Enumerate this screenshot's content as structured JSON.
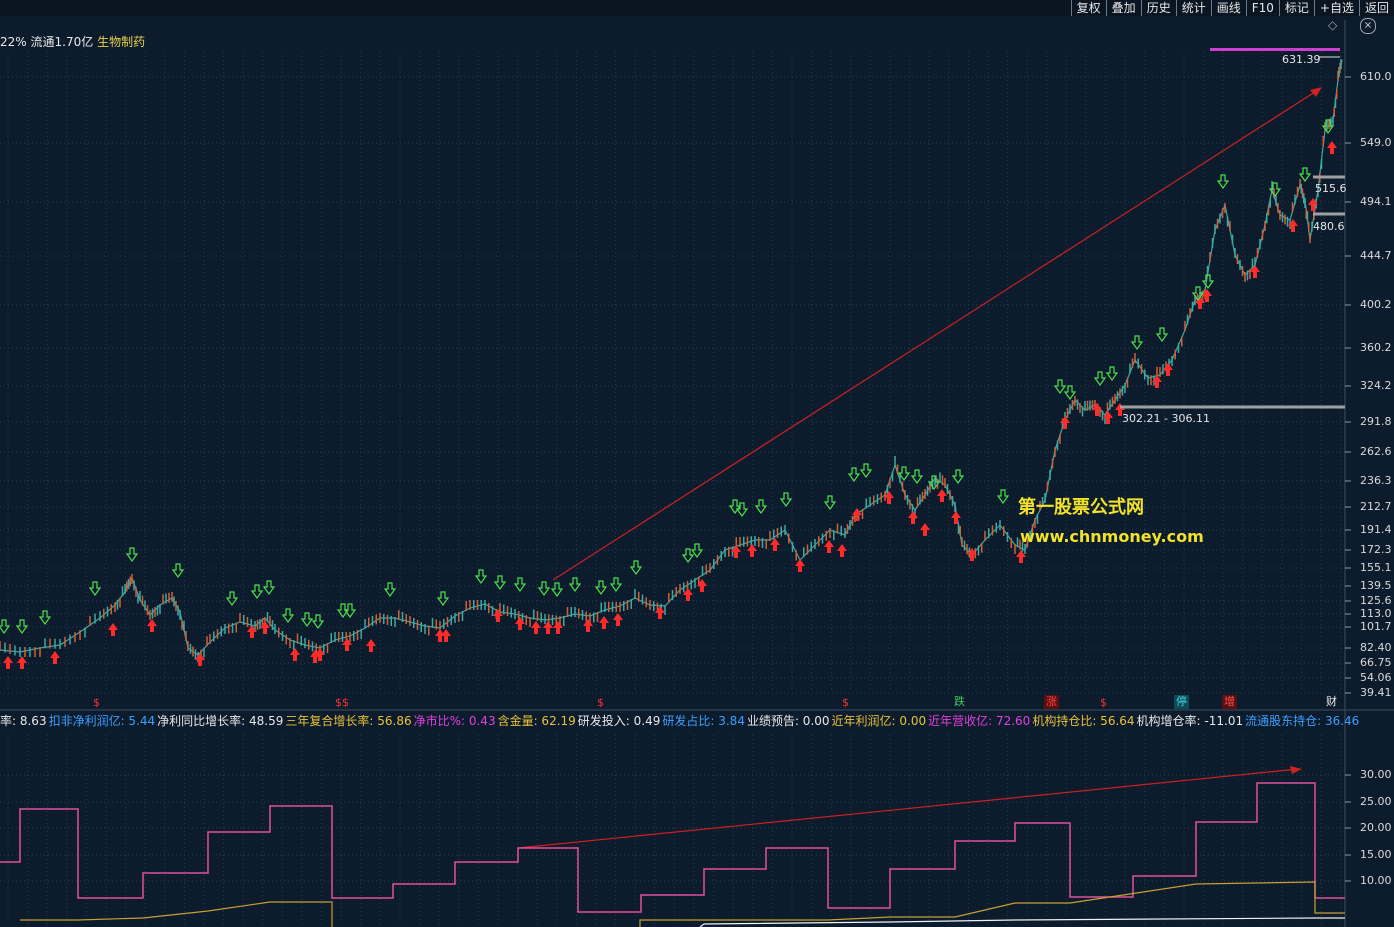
{
  "toolbar": {
    "items": [
      {
        "label": "复权",
        "name": "toolbar-fuquan-button"
      },
      {
        "label": "叠加",
        "name": "toolbar-diejia-button"
      },
      {
        "label": "历史",
        "name": "toolbar-lishi-button"
      },
      {
        "label": "统计",
        "name": "toolbar-tongji-button"
      },
      {
        "label": "画线",
        "name": "toolbar-huaxian-button"
      },
      {
        "label": "F10",
        "name": "toolbar-f10-button"
      },
      {
        "label": "标记",
        "name": "toolbar-biaoji-button"
      },
      {
        "label": "+自选",
        "name": "toolbar-zixuan-button"
      },
      {
        "label": "返回",
        "name": "toolbar-fanhui-button"
      }
    ]
  },
  "info": {
    "prefix": "22%",
    "float_label": "流通1.70亿",
    "industry": "生物制药",
    "diamond": "◇",
    "close": "×"
  },
  "watermark": {
    "line1": "第一股票公式网",
    "line2": "www.chnmoney.com"
  },
  "price_axis": [
    "610.0",
    "549.0",
    "494.1",
    "444.7",
    "400.2",
    "360.2",
    "324.2",
    "291.8",
    "262.6",
    "236.3",
    "212.7",
    "191.4",
    "172.3",
    "155.1",
    "139.5",
    "125.6",
    "113.0",
    "101.7",
    "82.40",
    "66.75",
    "54.06",
    "39.41"
  ],
  "indicator_axis": [
    "30.00",
    "25.00",
    "20.00",
    "15.00",
    "10.00"
  ],
  "annotations": {
    "peak_price": "631.39",
    "level_high": "515.6",
    "level_low": "480.6",
    "range_label": "302.21 - 306.11"
  },
  "event_badges": [
    {
      "text": "跌",
      "color": "#3cd05a"
    },
    {
      "text": "涨",
      "color": "#ff4040"
    },
    {
      "text": "停",
      "color": "#44d2e0"
    },
    {
      "text": "增",
      "color": "#ff5050"
    },
    {
      "text": "财",
      "color": "#e8e8e8"
    }
  ],
  "dollar_markers": [
    "$",
    "$$",
    "$",
    "$",
    "$"
  ],
  "financials": [
    {
      "label": "率:",
      "value": "8.63",
      "color": "#e8e8e8"
    },
    {
      "label": "扣非净利润亿:",
      "value": "5.44",
      "color": "#3aa0ff"
    },
    {
      "label": "净利同比增长率:",
      "value": "48.59",
      "color": "#e8e8e8"
    },
    {
      "label": "三年复合增长率:",
      "value": "56.86",
      "color": "#e8c23a"
    },
    {
      "label": "净市比%:",
      "value": "0.43",
      "color": "#e040e0"
    },
    {
      "label": "含金量:",
      "value": "62.19",
      "color": "#e8c23a"
    },
    {
      "label": "研发投入:",
      "value": "0.49",
      "color": "#e8e8e8"
    },
    {
      "label": "研发占比:",
      "value": "3.84",
      "color": "#3aa0ff"
    },
    {
      "label": "业绩预告:",
      "value": "0.00",
      "color": "#e8e8e8"
    },
    {
      "label": "近年利润亿:",
      "value": "0.00",
      "color": "#e8c23a"
    },
    {
      "label": "近年营收亿:",
      "value": "72.60",
      "color": "#e040e0"
    },
    {
      "label": "机构持仓比:",
      "value": "56.64",
      "color": "#e8c23a"
    },
    {
      "label": "机构增仓率:",
      "value": "-11.01",
      "color": "#e8e8e8"
    },
    {
      "label": "流通股东持仓:",
      "value": "36.46",
      "color": "#3aa0ff"
    }
  ],
  "colors": {
    "background": "#0d1c2c",
    "grid": "#1f3e5a",
    "candle_up": "#d0603a",
    "candle_down": "#3fa8a0",
    "trend_arrow": "#d02020",
    "buy_arrow": "#ff2a2a",
    "sell_arrow": "#4ce04c",
    "indicator_magenta": "#e050a0",
    "indicator_gold": "#c8a030",
    "indicator_white": "#f0f0f0"
  }
}
